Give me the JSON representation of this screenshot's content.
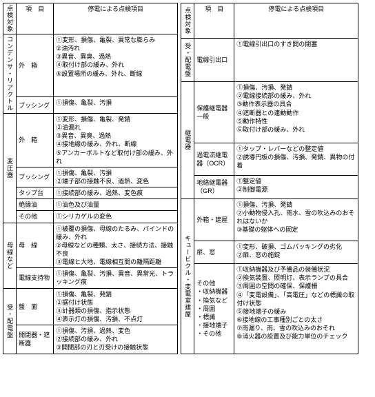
{
  "left": {
    "hdr": {
      "c0": "点検対象",
      "c1": "項　目",
      "c2": "停電による点検項目"
    },
    "g1": {
      "cat": "コンデンサ・リアクトル",
      "r1": {
        "item": "外　箱",
        "text": "①変形、損傷、亀裂、異常な膨らみ\n②油汚れ\n③異音、異臭、過熱\n④取付け部の緩み、外れ\n⑤設置場所の緩み、外れ、断線"
      },
      "r2": {
        "item": "ブッシング",
        "text": "①損傷、亀裂、汚損"
      }
    },
    "g2": {
      "cat": "変圧器",
      "r1": {
        "item": "外　箱",
        "text": "①変形、損傷、亀裂、発錆\n②油漏れ\n③異音、異臭、過熱\n④接地線の緩み、外れ、断線\n⑤アンカーボルトなど取付け部の緩み、外れ"
      },
      "r2": {
        "item": "ブッシング",
        "text": "①損傷、亀裂、汚損\n②端子部の接触不良、過熱、変色"
      },
      "r3": {
        "item": "タップ台",
        "text": "①接続部の緩み、過熱、変色痕"
      },
      "r4": {
        "item": "絶縁油",
        "text": "①油色及び油量"
      },
      "r5": {
        "item": "その他",
        "text": "①シリカゲルの変色"
      }
    },
    "g3": {
      "cat": "母線など",
      "r1": {
        "item": "母　線",
        "text": "①被覆の損傷、母線のたるみ、バインドの緩み、外れ\n②母線などの種類、太さ、接続方法、接触不良\n③電線と大地、電線相互間の離隔距離"
      },
      "r2": {
        "item": "電線支持物",
        "text": "①損傷、亀裂、汚損、異音、異常光、トラッキング痕"
      }
    },
    "g4": {
      "cat": "受・配電盤",
      "r1": {
        "item": "盤　面",
        "text": "①損傷、亀裂、発錆\n②据付け状態\n③計器類の損傷、指示状態\n④表示灯の損傷、汚損、不点灯"
      },
      "r2": {
        "item": "開閉器・遮断器",
        "text": "①損傷、汚損、過熱、変色\n②接続部の緩み、外れ\n③開閉部の刃と刃受けの接触状態"
      }
    }
  },
  "right": {
    "hdr": {
      "c0": "点検対象",
      "c1": "項　目",
      "c2": "停電による点検項目"
    },
    "g1": {
      "cat": "受・配電盤",
      "r1": {
        "item": "電線引出口",
        "text": "①電線引出口のすき間の閉塞"
      }
    },
    "g2": {
      "cat": "継電器",
      "r1": {
        "item": "保護継電器一般",
        "text": "①損傷、汚損、発錆\n②電線接続部の緩み、外れ\n③動作表示器の具合\n④遮断器との連動動作\n⑤動作特性\n⑥取付け部の緩み、外れ"
      },
      "r2": {
        "item": "過電流継電器（OCR）",
        "text": "①タップ・レバーなどの整定値\n②誘導円板の損傷、汚損、発錆、異物の付着"
      },
      "r3": {
        "item": "地絡継電器（GR）",
        "text": "①整定値\n②制御電源"
      }
    },
    "g3": {
      "cat": "キュービクル・変電室建屋",
      "r1": {
        "item": "外箱・建屋",
        "text": "①損傷、汚損、発錆\n②小動物侵入孔、雨水、雪の吹込みのおそれはないか\n③基礎の躯体への固定"
      },
      "r2": {
        "item": "扉、窓",
        "text": "①変形、破損、ゴムパッキングの劣化\n②扉、窓の施錠"
      },
      "r3": {
        "item": "その他\n・収納機器\n・換気など\n・周囲\n・標識\n・接地端子\n・その他",
        "text": "①収納機器及び予備品の装備状況\n②換気装置、照明灯、表示ランプの具合\n③周囲の空間の確保、保護柵\n④「変電設備」、「高電圧」などの標識の取付け状態\n⑤接地端子の緩み\n⑥接地線の工事種別ごとの太さ\n⑦雨漏り、雨、雪の吹込みのおそれ\n⑧消火器の設置及び能力単位のチェック"
      }
    }
  }
}
